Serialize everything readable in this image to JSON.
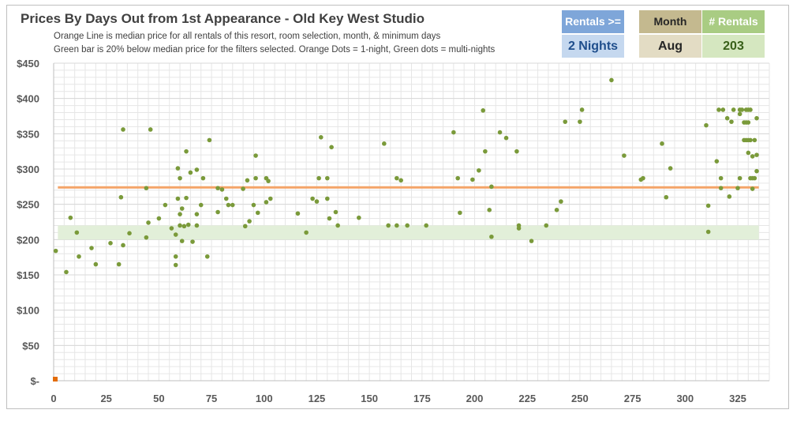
{
  "chart_data": {
    "type": "scatter",
    "title": "Prices By Days Out from 1st Appearance - Old Key West Studio",
    "subtitle_lines": [
      "Orange Line is median price for all rentals of this resort, room selection, month, & minimum days",
      "Green bar is 20% below median price for the filters selected. Orange Dots = 1-night, Green dots = multi-nights"
    ],
    "xlim": [
      0,
      340
    ],
    "ylim": [
      0,
      450
    ],
    "x_ticks": [
      0,
      25,
      50,
      75,
      100,
      125,
      150,
      175,
      200,
      225,
      250,
      275,
      300,
      325
    ],
    "y_ticks": [
      0,
      50,
      100,
      150,
      200,
      250,
      300,
      350,
      400,
      450
    ],
    "y_tick_labels": [
      "$-",
      "$50",
      "$100",
      "$150",
      "$200",
      "$250",
      "$300",
      "$350",
      "$400",
      "$450"
    ],
    "grid": true,
    "median_price": 274,
    "band": [
      200,
      220
    ],
    "colors": {
      "median_line": "#f4a468",
      "band": "#e2efd9",
      "multi_night_dot": "#7a9a3a",
      "one_night_dot": "#e36c09",
      "grid": "#e6e6e6",
      "axis": "#bfbfbf"
    },
    "series": [
      {
        "points": [
          [
            1,
            184
          ],
          [
            6,
            154
          ],
          [
            8,
            231
          ],
          [
            11,
            210
          ],
          [
            12,
            176
          ],
          [
            18,
            188
          ],
          [
            20,
            165
          ],
          [
            27,
            195
          ],
          [
            31,
            165
          ],
          [
            32,
            260
          ],
          [
            33,
            192
          ],
          [
            33,
            356
          ],
          [
            36,
            209
          ],
          [
            44,
            203
          ],
          [
            44,
            273
          ],
          [
            45,
            224
          ],
          [
            46,
            356
          ],
          [
            50,
            230
          ],
          [
            53,
            249
          ],
          [
            56,
            216
          ],
          [
            58,
            207
          ],
          [
            58,
            164
          ],
          [
            58,
            176
          ],
          [
            59,
            258
          ],
          [
            59,
            301
          ],
          [
            60,
            287
          ],
          [
            60,
            236
          ],
          [
            60,
            220
          ],
          [
            61,
            198
          ],
          [
            61,
            244
          ],
          [
            62,
            219
          ],
          [
            63,
            325
          ],
          [
            63,
            259
          ],
          [
            64,
            221
          ],
          [
            65,
            295
          ],
          [
            66,
            197
          ],
          [
            68,
            220
          ],
          [
            68,
            236
          ],
          [
            68,
            299
          ],
          [
            70,
            249
          ],
          [
            71,
            287
          ],
          [
            73,
            176
          ],
          [
            74,
            341
          ],
          [
            78,
            239
          ],
          [
            78,
            273
          ],
          [
            80,
            271
          ],
          [
            82,
            258
          ],
          [
            83,
            249
          ],
          [
            85,
            249
          ],
          [
            90,
            272
          ],
          [
            91,
            219
          ],
          [
            92,
            284
          ],
          [
            93,
            226
          ],
          [
            95,
            249
          ],
          [
            96,
            319
          ],
          [
            96,
            287
          ],
          [
            97,
            238
          ],
          [
            101,
            253
          ],
          [
            101,
            287
          ],
          [
            102,
            283
          ],
          [
            103,
            258
          ],
          [
            116,
            237
          ],
          [
            120,
            210
          ],
          [
            123,
            258
          ],
          [
            125,
            254
          ],
          [
            126,
            287
          ],
          [
            127,
            345
          ],
          [
            130,
            287
          ],
          [
            130,
            258
          ],
          [
            131,
            230
          ],
          [
            132,
            331
          ],
          [
            134,
            239
          ],
          [
            135,
            220
          ],
          [
            145,
            231
          ],
          [
            157,
            336
          ],
          [
            159,
            220
          ],
          [
            163,
            287
          ],
          [
            163,
            220
          ],
          [
            165,
            284
          ],
          [
            168,
            220
          ],
          [
            177,
            220
          ],
          [
            190,
            352
          ],
          [
            192,
            287
          ],
          [
            193,
            238
          ],
          [
            199,
            285
          ],
          [
            202,
            298
          ],
          [
            204,
            383
          ],
          [
            205,
            325
          ],
          [
            207,
            242
          ],
          [
            208,
            275
          ],
          [
            208,
            204
          ],
          [
            212,
            352
          ],
          [
            215,
            344
          ],
          [
            220,
            325
          ],
          [
            221,
            216
          ],
          [
            221,
            220
          ],
          [
            227,
            198
          ],
          [
            234,
            220
          ],
          [
            239,
            242
          ],
          [
            241,
            254
          ],
          [
            243,
            367
          ],
          [
            250,
            367
          ],
          [
            251,
            384
          ],
          [
            265,
            426
          ],
          [
            271,
            319
          ],
          [
            279,
            285
          ],
          [
            280,
            287
          ],
          [
            289,
            336
          ],
          [
            291,
            260
          ],
          [
            293,
            301
          ],
          [
            310,
            362
          ],
          [
            311,
            248
          ],
          [
            311,
            211
          ],
          [
            315,
            311
          ],
          [
            316,
            384
          ],
          [
            317,
            287
          ],
          [
            317,
            273
          ],
          [
            318,
            384
          ],
          [
            320,
            372
          ],
          [
            321,
            261
          ],
          [
            322,
            367
          ],
          [
            323,
            384
          ],
          [
            325,
            273
          ],
          [
            326,
            378
          ],
          [
            326,
            287
          ],
          [
            326,
            384
          ],
          [
            327,
            384
          ],
          [
            328,
            366
          ],
          [
            328,
            341
          ],
          [
            329,
            384
          ],
          [
            329,
            366
          ],
          [
            329,
            341
          ],
          [
            330,
            341
          ],
          [
            330,
            366
          ],
          [
            330,
            323
          ],
          [
            330,
            384
          ],
          [
            331,
            287
          ],
          [
            331,
            384
          ],
          [
            331,
            341
          ],
          [
            332,
            287
          ],
          [
            332,
            318
          ],
          [
            332,
            272
          ],
          [
            333,
            341
          ],
          [
            333,
            287
          ],
          [
            334,
            297
          ],
          [
            334,
            372
          ],
          [
            334,
            320
          ]
        ]
      },
      {
        "points": [
          [
            0,
            0
          ]
        ]
      }
    ]
  }
}
